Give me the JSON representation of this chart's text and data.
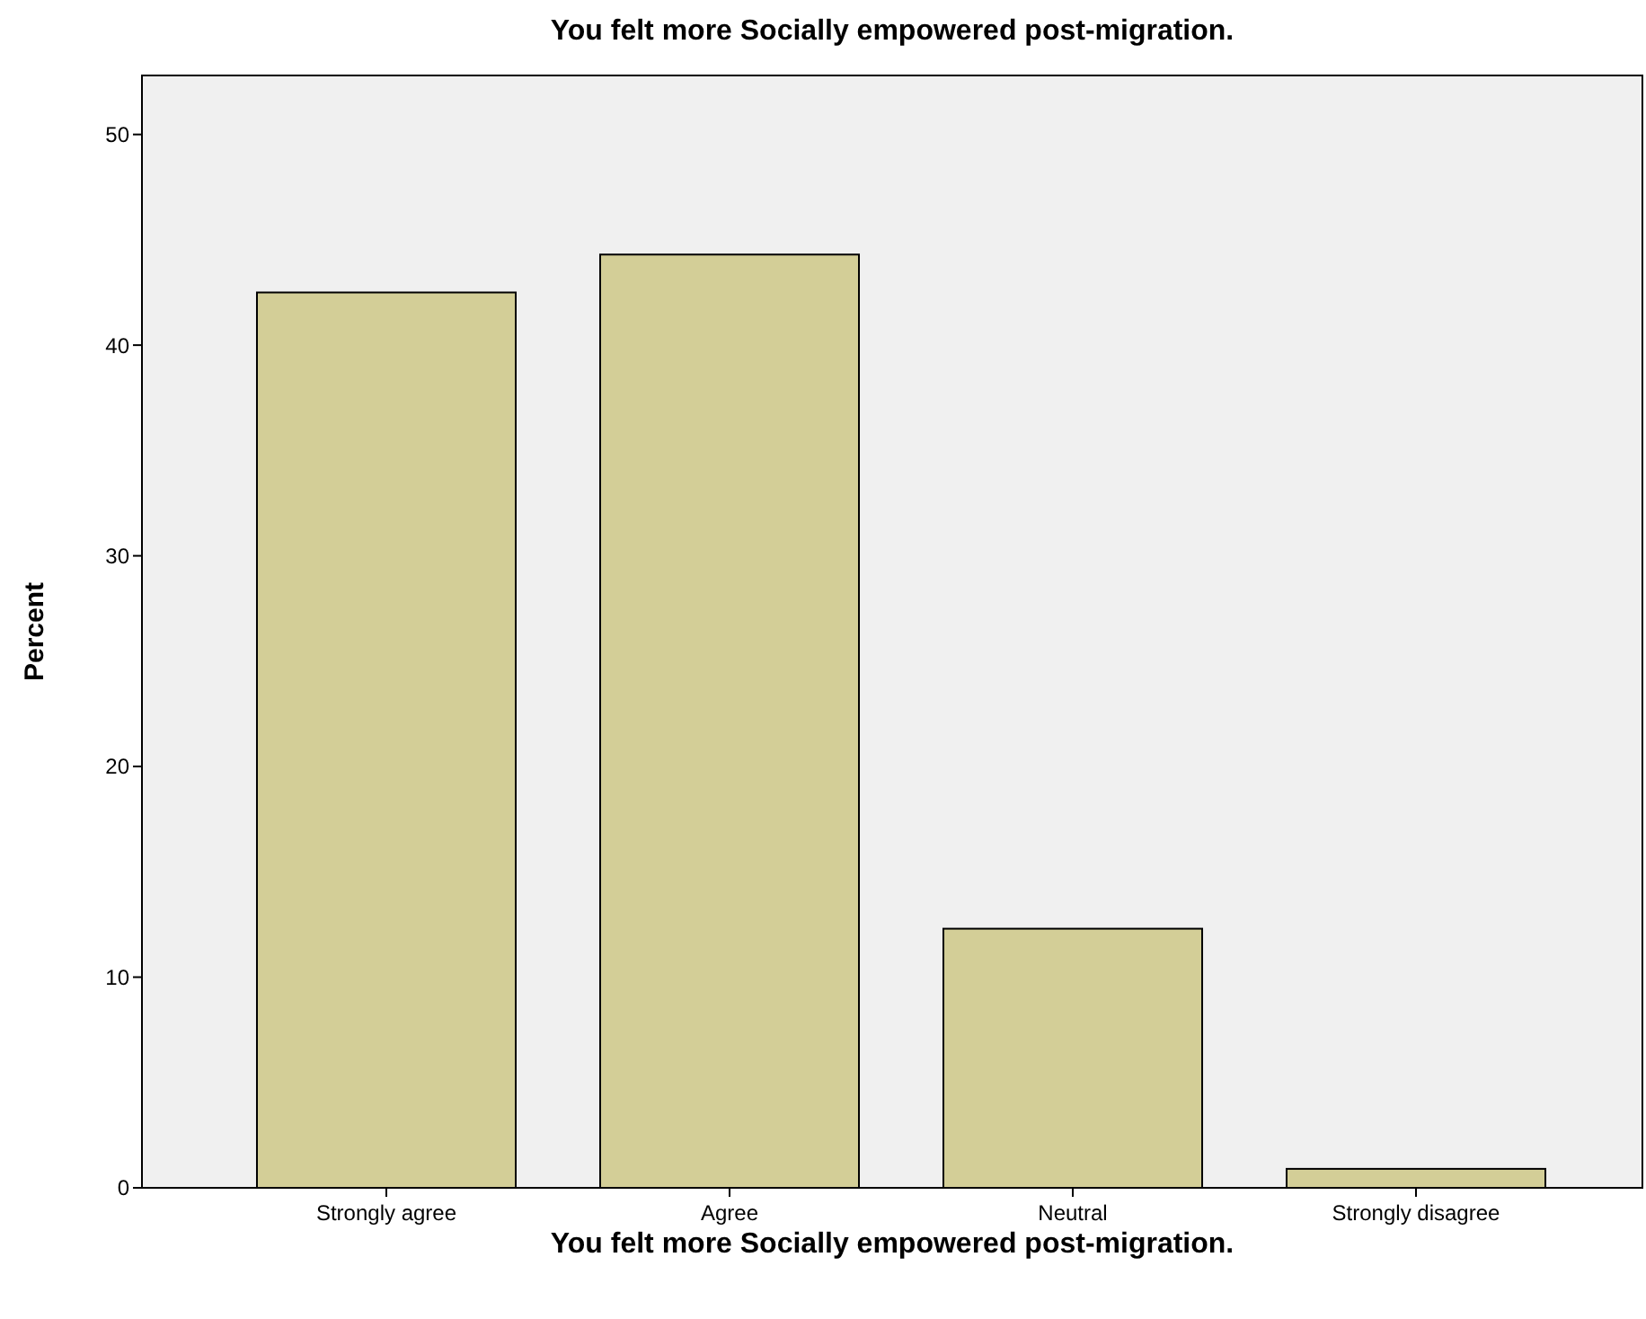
{
  "chart_data": {
    "type": "bar",
    "title": "You felt more Socially empowered post-migration.",
    "xlabel": "You felt more Socially empowered post-migration.",
    "ylabel": "Percent",
    "categories": [
      "Strongly agree",
      "Agree",
      "Neutral",
      "Strongly disagree"
    ],
    "values": [
      42.5,
      44.3,
      12.3,
      0.9
    ],
    "color": "#d3ce97",
    "ylim": [
      0,
      52.8
    ],
    "yticks": [
      0,
      10,
      20,
      30,
      40,
      50
    ],
    "grid": false
  }
}
